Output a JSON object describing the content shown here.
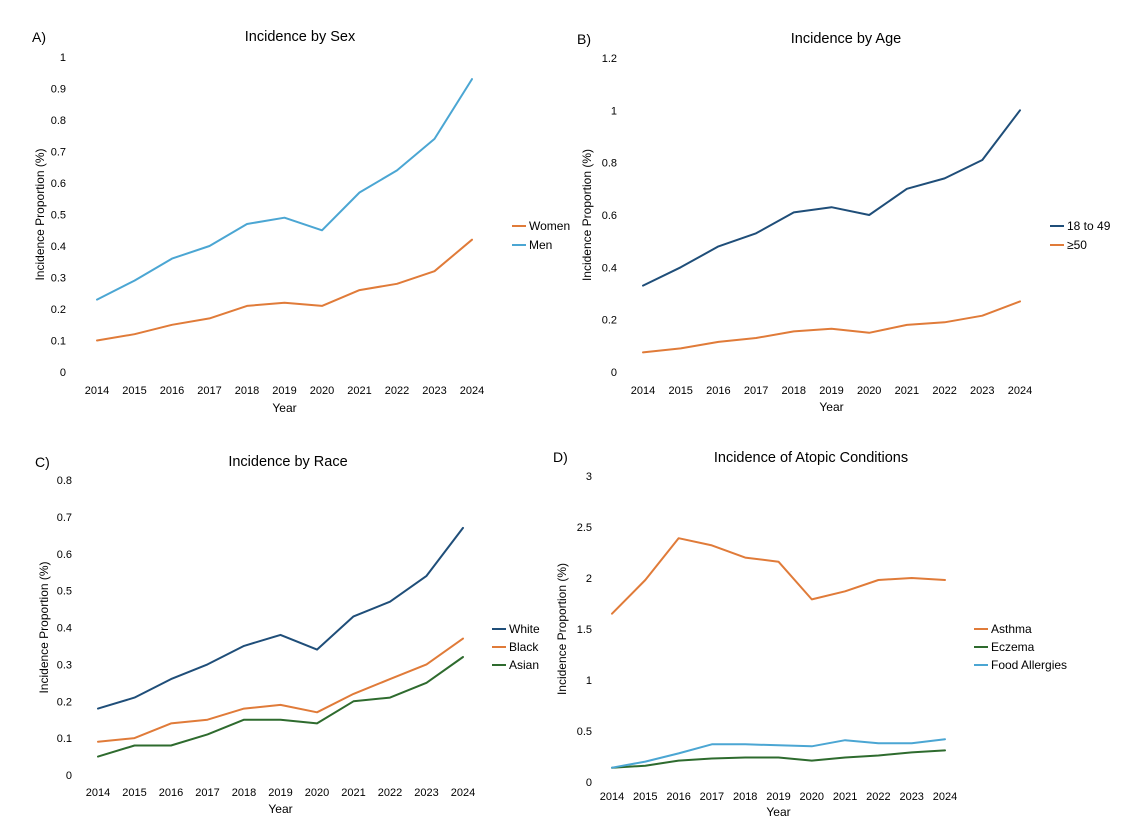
{
  "chart_data": [
    {
      "type": "line",
      "panel_label": "A)",
      "title": "Incidence by Sex",
      "xlabel": "Year",
      "ylabel": "Incidence Proportion (%)",
      "categories": [
        "2014",
        "2015",
        "2016",
        "2017",
        "2018",
        "2019",
        "2020",
        "2021",
        "2022",
        "2023",
        "2024"
      ],
      "ylim": [
        0,
        1
      ],
      "yticks": [
        "0",
        "0.1",
        "0.2",
        "0.3",
        "0.4",
        "0.5",
        "0.6",
        "0.7",
        "0.8",
        "0.9",
        "1"
      ],
      "grid": false,
      "legend_position": "right",
      "series": [
        {
          "name": "Women",
          "color": "#E07B39",
          "values": [
            0.1,
            0.12,
            0.15,
            0.17,
            0.21,
            0.22,
            0.21,
            0.26,
            0.28,
            0.32,
            0.42
          ]
        },
        {
          "name": "Men",
          "color": "#4BA6D3",
          "values": [
            0.23,
            0.29,
            0.36,
            0.4,
            0.47,
            0.49,
            0.45,
            0.57,
            0.64,
            0.74,
            0.93
          ]
        }
      ]
    },
    {
      "type": "line",
      "panel_label": "B)",
      "title": "Incidence by Age",
      "xlabel": "Year",
      "ylabel": "Incidence Proportion (%)",
      "categories": [
        "2014",
        "2015",
        "2016",
        "2017",
        "2018",
        "2019",
        "2020",
        "2021",
        "2022",
        "2023",
        "2024"
      ],
      "ylim": [
        0,
        1.2
      ],
      "yticks": [
        "0",
        "0.2",
        "0.4",
        "0.6",
        "0.8",
        "1",
        "1.2"
      ],
      "grid": false,
      "legend_position": "right",
      "series": [
        {
          "name": "18 to 49",
          "color": "#1F4E79",
          "values": [
            0.33,
            0.4,
            0.48,
            0.53,
            0.61,
            0.63,
            0.6,
            0.7,
            0.74,
            0.81,
            1.0
          ]
        },
        {
          "name": "≥50",
          "color": "#E07B39",
          "values": [
            0.075,
            0.09,
            0.115,
            0.13,
            0.155,
            0.165,
            0.15,
            0.18,
            0.19,
            0.215,
            0.27
          ]
        }
      ]
    },
    {
      "type": "line",
      "panel_label": "C)",
      "title": "Incidence by Race",
      "xlabel": "Year",
      "ylabel": "Incidence Proportion (%)",
      "categories": [
        "2014",
        "2015",
        "2016",
        "2017",
        "2018",
        "2019",
        "2020",
        "2021",
        "2022",
        "2023",
        "2024"
      ],
      "ylim": [
        0,
        0.8
      ],
      "yticks": [
        "0",
        "0.1",
        "0.2",
        "0.3",
        "0.4",
        "0.5",
        "0.6",
        "0.7",
        "0.8"
      ],
      "grid": false,
      "legend_position": "right",
      "series": [
        {
          "name": "White",
          "color": "#1F4E79",
          "values": [
            0.18,
            0.21,
            0.26,
            0.3,
            0.35,
            0.38,
            0.34,
            0.43,
            0.47,
            0.54,
            0.67
          ]
        },
        {
          "name": "Black",
          "color": "#E07B39",
          "values": [
            0.09,
            0.1,
            0.14,
            0.15,
            0.18,
            0.19,
            0.17,
            0.22,
            0.26,
            0.3,
            0.37
          ]
        },
        {
          "name": "Asian",
          "color": "#2E6B2E",
          "values": [
            0.05,
            0.08,
            0.08,
            0.11,
            0.15,
            0.15,
            0.14,
            0.2,
            0.21,
            0.25,
            0.32
          ]
        }
      ]
    },
    {
      "type": "line",
      "panel_label": "D)",
      "title": "Incidence of Atopic Conditions",
      "xlabel": "Year",
      "ylabel": "Incidence Proportion (%)",
      "categories": [
        "2014",
        "2015",
        "2016",
        "2017",
        "2018",
        "2019",
        "2020",
        "2021",
        "2022",
        "2023",
        "2024"
      ],
      "ylim": [
        0,
        3
      ],
      "yticks": [
        "0",
        "0.5",
        "1",
        "1.5",
        "2",
        "2.5",
        "3"
      ],
      "grid": false,
      "legend_position": "right",
      "series": [
        {
          "name": "Asthma",
          "color": "#E07B39",
          "values": [
            1.65,
            1.98,
            2.39,
            2.32,
            2.2,
            2.16,
            1.79,
            1.87,
            1.98,
            2.0,
            1.98
          ]
        },
        {
          "name": "Eczema",
          "color": "#2E6B2E",
          "values": [
            0.14,
            0.16,
            0.21,
            0.23,
            0.24,
            0.24,
            0.21,
            0.24,
            0.26,
            0.29,
            0.31
          ]
        },
        {
          "name": "Food Allergies",
          "color": "#4BA6D3",
          "values": [
            0.14,
            0.2,
            0.28,
            0.37,
            0.37,
            0.36,
            0.35,
            0.41,
            0.38,
            0.38,
            0.42
          ]
        }
      ]
    }
  ]
}
